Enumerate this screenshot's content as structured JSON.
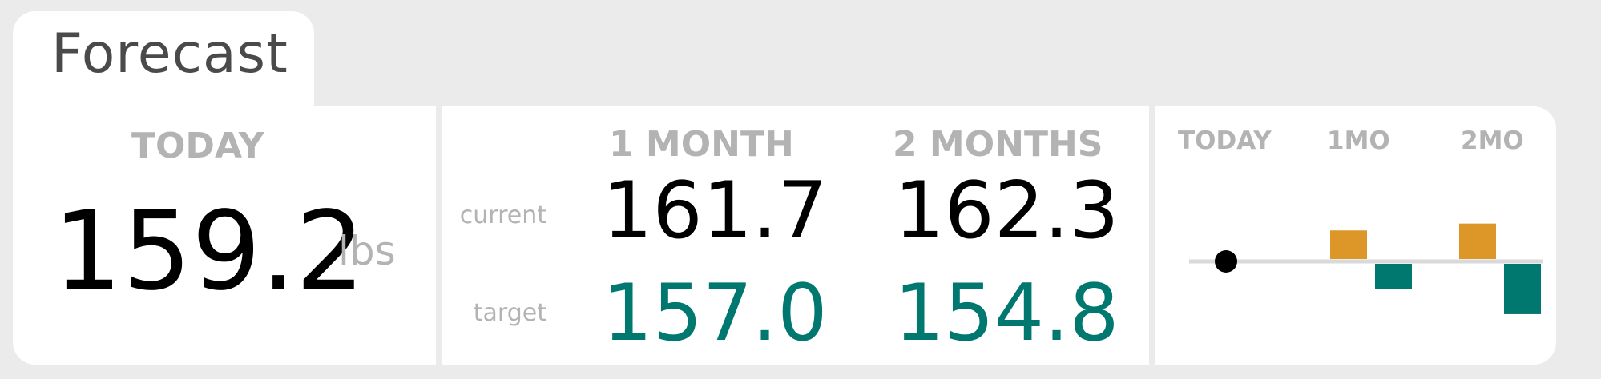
{
  "tab": {
    "title": "Forecast"
  },
  "today": {
    "header": "TODAY",
    "value": "159.2",
    "unit": "lbs"
  },
  "forecast": {
    "row_labels": {
      "current": "current",
      "target": "target"
    },
    "columns": [
      {
        "header": "1 MONTH",
        "current": "161.7",
        "target": "157.0"
      },
      {
        "header": "2 MONTHS",
        "current": "162.3",
        "target": "154.8"
      }
    ]
  },
  "chart_data": {
    "type": "bar",
    "categories": [
      "TODAY",
      "1MO",
      "2MO"
    ],
    "baseline": 159.2,
    "series": [
      {
        "values": [
          null,
          161.7,
          162.3
        ],
        "color": "#dd9628"
      },
      {
        "values": [
          null,
          157.0,
          154.8
        ],
        "color": "#00786f"
      }
    ],
    "today_marker": {
      "value": 159.2,
      "color": "#000000"
    },
    "axis_color": "#d9d9d9",
    "grid": false,
    "legend": "none"
  },
  "colors": {
    "background": "#ebebeb",
    "panel": "#ffffff",
    "muted_text": "#b3b3b3",
    "title_text": "#4a4a4a",
    "current": "#000000",
    "target": "#00786f",
    "above_bar": "#dd9628",
    "below_bar": "#00786f"
  }
}
